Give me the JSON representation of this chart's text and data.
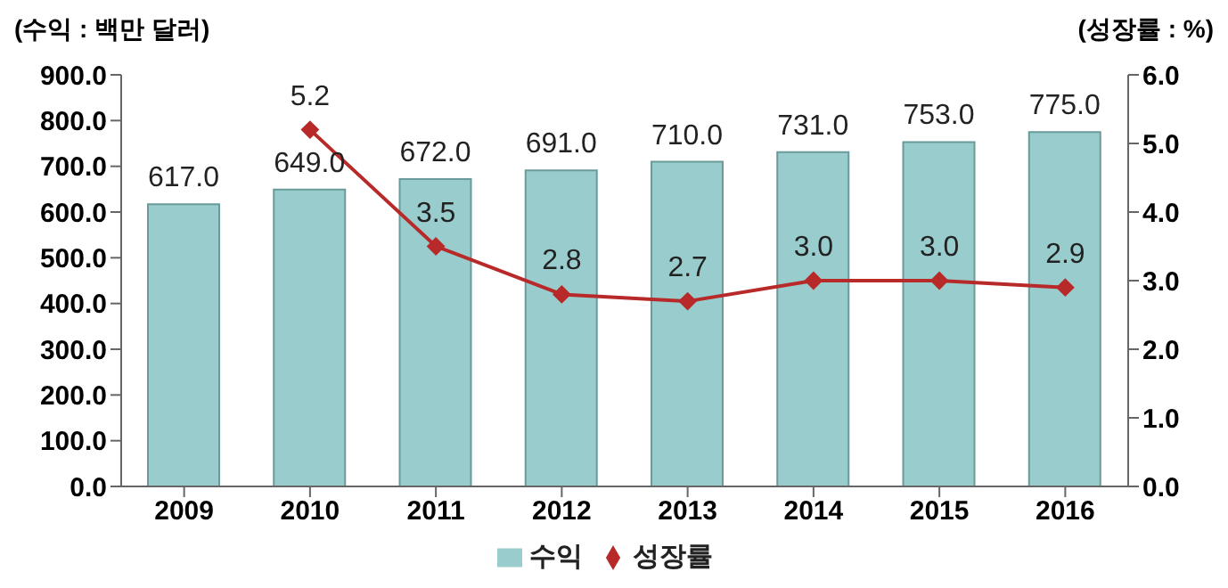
{
  "chart_data": {
    "type": "bar",
    "categories": [
      "2009",
      "2010",
      "2011",
      "2012",
      "2013",
      "2014",
      "2015",
      "2016"
    ],
    "ylabel": "(수익 : 백만 달러)",
    "y2label": "(성장률 : %)",
    "series": [
      {
        "name": "수익",
        "color": "#99cccc",
        "values": [
          617,
          649,
          672,
          691,
          710,
          731,
          753,
          775
        ],
        "value_labels": [
          "617.0",
          "649.0",
          "672.0",
          "691.0",
          "710.0",
          "731.0",
          "753.0",
          "775.0"
        ]
      },
      {
        "name": "성장률",
        "type": "line",
        "axis": "y2",
        "color": "#b82a2a",
        "values": [
          null,
          5.2,
          3.5,
          2.8,
          2.7,
          3.0,
          3.0,
          2.9
        ],
        "value_labels": [
          null,
          "5.2",
          "3.5",
          "2.8",
          "2.7",
          "3.0",
          "3.0",
          "2.9"
        ]
      }
    ],
    "ylim": [
      0,
      900
    ],
    "yticks": [
      {
        "value": 0,
        "label": "0.0"
      },
      {
        "value": 100,
        "label": "100.0"
      },
      {
        "value": 200,
        "label": "200.0"
      },
      {
        "value": 300,
        "label": "300.0"
      },
      {
        "value": 400,
        "label": "400.0"
      },
      {
        "value": 500,
        "label": "500.0"
      },
      {
        "value": 600,
        "label": "600.0"
      },
      {
        "value": 700,
        "label": "700.0"
      },
      {
        "value": 800,
        "label": "800.0"
      },
      {
        "value": 900,
        "label": "900.0"
      }
    ],
    "y2lim": [
      0,
      6
    ],
    "y2ticks": [
      {
        "value": 0,
        "label": "0.0"
      },
      {
        "value": 1,
        "label": "1.0"
      },
      {
        "value": 2,
        "label": "2.0"
      },
      {
        "value": 3,
        "label": "3.0"
      },
      {
        "value": 4,
        "label": "4.0"
      },
      {
        "value": 5,
        "label": "5.0"
      },
      {
        "value": 6,
        "label": "6.0"
      }
    ],
    "legend": "bottom",
    "marker": "diamond",
    "grid": false
  }
}
